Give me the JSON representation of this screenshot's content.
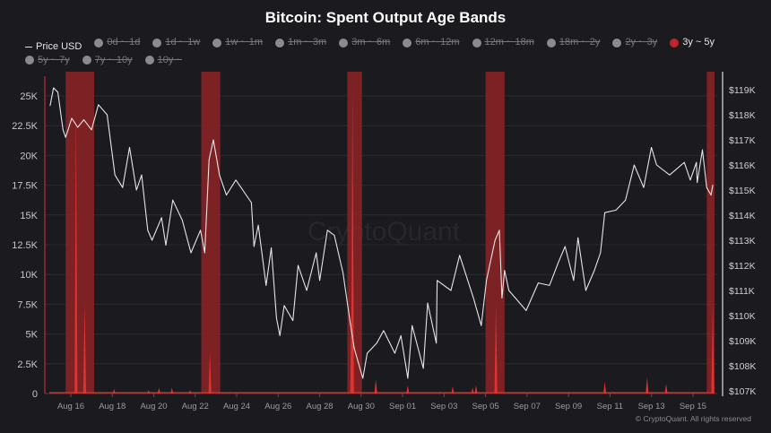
{
  "chart_data": {
    "type": "line",
    "title": "Bitcoin: Spent Output Age Bands",
    "legend": {
      "placement": "top",
      "items": [
        {
          "label": "Price USD",
          "active": true,
          "marker": "line"
        },
        {
          "label": "0d ~ 1d",
          "active": false
        },
        {
          "label": "1d ~ 1w",
          "active": false
        },
        {
          "label": "1w ~ 1m",
          "active": false
        },
        {
          "label": "1m ~ 3m",
          "active": false
        },
        {
          "label": "3m ~ 6m",
          "active": false
        },
        {
          "label": "6m ~ 12m",
          "active": false
        },
        {
          "label": "12m ~ 18m",
          "active": false
        },
        {
          "label": "18m ~ 2y",
          "active": false
        },
        {
          "label": "2y ~ 3y",
          "active": false
        },
        {
          "label": "3y ~ 5y",
          "active": true,
          "color": "#c0262b"
        },
        {
          "label": "5y ~ 7y",
          "active": false
        },
        {
          "label": "7y ~ 10y",
          "active": false
        },
        {
          "label": "10y ~",
          "active": false
        }
      ]
    },
    "x_ticks": [
      "Aug 16",
      "Aug 18",
      "Aug 20",
      "Aug 22",
      "Aug 24",
      "Aug 26",
      "Aug 28",
      "Aug 30",
      "Sep 01",
      "Sep 03",
      "Sep 05",
      "Sep 07",
      "Sep 09",
      "Sep 11",
      "Sep 13",
      "Sep 15"
    ],
    "y_left": {
      "ticks": [
        "0",
        "2.5K",
        "5K",
        "7.5K",
        "10K",
        "12.5K",
        "15K",
        "17.5K",
        "20K",
        "22.5K",
        "25K"
      ],
      "range": [
        0,
        26000
      ],
      "grid": true
    },
    "y_right": {
      "ticks": [
        "$107K",
        "$108K",
        "$109K",
        "$110K",
        "$111K",
        "$112K",
        "$113K",
        "$114K",
        "$115K",
        "$116K",
        "$117K",
        "$118K",
        "$119K"
      ],
      "range": [
        107000,
        119000
      ]
    },
    "series": [
      {
        "name": "Price USD",
        "axis": "right",
        "color": "#e6e6e6",
        "points": [
          [
            "Aug 15 00:00",
            118360
          ],
          [
            "Aug 15 04:00",
            119070
          ],
          [
            "Aug 15 09:00",
            118900
          ],
          [
            "Aug 15 15:00",
            117400
          ],
          [
            "Aug 15 18:00",
            117100
          ],
          [
            "Aug 16 01:00",
            117860
          ],
          [
            "Aug 16 08:00",
            117500
          ],
          [
            "Aug 16 15:00",
            117800
          ],
          [
            "Aug 17 00:00",
            117400
          ],
          [
            "Aug 17 08:00",
            118400
          ],
          [
            "Aug 17 18:00",
            118000
          ],
          [
            "Aug 18 03:00",
            115600
          ],
          [
            "Aug 18 12:00",
            115100
          ],
          [
            "Aug 18 20:00",
            116700
          ],
          [
            "Aug 19 04:00",
            115000
          ],
          [
            "Aug 19 10:00",
            115600
          ],
          [
            "Aug 19 17:00",
            113400
          ],
          [
            "Aug 19 22:00",
            113000
          ],
          [
            "Aug 20 09:00",
            113900
          ],
          [
            "Aug 20 14:00",
            112800
          ],
          [
            "Aug 20 22:00",
            114600
          ],
          [
            "Aug 21 09:00",
            113800
          ],
          [
            "Aug 21 19:00",
            112500
          ],
          [
            "Aug 22 06:00",
            113400
          ],
          [
            "Aug 22 11:00",
            112500
          ],
          [
            "Aug 22 16:00",
            116200
          ],
          [
            "Aug 22 21:00",
            117000
          ],
          [
            "Aug 23 04:00",
            115600
          ],
          [
            "Aug 23 12:00",
            114800
          ],
          [
            "Aug 23 23:00",
            115400
          ],
          [
            "Aug 24 17:00",
            114500
          ],
          [
            "Aug 24 20:00",
            112750
          ],
          [
            "Aug 25 01:00",
            113600
          ],
          [
            "Aug 25 10:00",
            111200
          ],
          [
            "Aug 25 16:00",
            112700
          ],
          [
            "Aug 25 22:00",
            109900
          ],
          [
            "Aug 26 02:00",
            109200
          ],
          [
            "Aug 26 07:00",
            110400
          ],
          [
            "Aug 26 17:00",
            109800
          ],
          [
            "Aug 26 23:00",
            112000
          ],
          [
            "Aug 27 09:00",
            111000
          ],
          [
            "Aug 27 20:00",
            112500
          ],
          [
            "Aug 28 00:00",
            111400
          ],
          [
            "Aug 28 09:00",
            113400
          ],
          [
            "Aug 28 17:00",
            113200
          ],
          [
            "Aug 29 03:00",
            111700
          ],
          [
            "Aug 29 11:00",
            109800
          ],
          [
            "Aug 29 16:00",
            108700
          ],
          [
            "Aug 30 02:00",
            107500
          ],
          [
            "Aug 30 07:00",
            108500
          ],
          [
            "Aug 30 18:00",
            108900
          ],
          [
            "Aug 31 02:00",
            109400
          ],
          [
            "Aug 31 15:00",
            108500
          ],
          [
            "Aug 31 22:00",
            109200
          ],
          [
            "Sep 01 06:00",
            107500
          ],
          [
            "Sep 01 11:00",
            109600
          ],
          [
            "Sep 02 00:00",
            107900
          ],
          [
            "Sep 02 05:00",
            110500
          ],
          [
            "Sep 02 15:00",
            108900
          ],
          [
            "Sep 02 16:00",
            111400
          ],
          [
            "Sep 03 08:00",
            111000
          ],
          [
            "Sep 03 18:00",
            112400
          ],
          [
            "Sep 04 10:00",
            110700
          ],
          [
            "Sep 04 19:00",
            109600
          ],
          [
            "Sep 05 01:00",
            111400
          ],
          [
            "Sep 05 11:00",
            113000
          ],
          [
            "Sep 05 16:00",
            113400
          ],
          [
            "Sep 05 19:00",
            110700
          ],
          [
            "Sep 05 22:00",
            111800
          ],
          [
            "Sep 06 03:00",
            111000
          ],
          [
            "Sep 06 23:00",
            110200
          ],
          [
            "Sep 07 13:00",
            111300
          ],
          [
            "Sep 08 02:00",
            111200
          ],
          [
            "Sep 08 12:00",
            112100
          ],
          [
            "Sep 08 20:00",
            112750
          ],
          [
            "Sep 09 06:00",
            111400
          ],
          [
            "Sep 09 11:00",
            113100
          ],
          [
            "Sep 09 20:00",
            111000
          ],
          [
            "Sep 10 06:00",
            111800
          ],
          [
            "Sep 10 13:00",
            112500
          ],
          [
            "Sep 10 18:00",
            114100
          ],
          [
            "Sep 11 07:00",
            114200
          ],
          [
            "Sep 11 18:00",
            114600
          ],
          [
            "Sep 12 04:00",
            116000
          ],
          [
            "Sep 12 15:00",
            115100
          ],
          [
            "Sep 13 00:00",
            116700
          ],
          [
            "Sep 13 06:00",
            116000
          ],
          [
            "Sep 13 21:00",
            115600
          ],
          [
            "Sep 14 14:00",
            116100
          ],
          [
            "Sep 14 21:00",
            115400
          ],
          [
            "Sep 15 04:00",
            116100
          ],
          [
            "Sep 15 05:00",
            115300
          ],
          [
            "Sep 15 11:00",
            116600
          ],
          [
            "Sep 15 16:00",
            115100
          ],
          [
            "Sep 15 21:00",
            114800
          ],
          [
            "Sep 15 23:00",
            115200
          ]
        ]
      },
      {
        "name": "3y ~ 5y",
        "axis": "left",
        "color": "#e0322f",
        "points": [
          [
            "Aug 16 06:00",
            23900
          ],
          [
            "Aug 16 16:00",
            7600
          ],
          [
            "Aug 18 02:00",
            400
          ],
          [
            "Aug 19 18:00",
            300
          ],
          [
            "Aug 20 06:00",
            500
          ],
          [
            "Aug 20 21:00",
            500
          ],
          [
            "Aug 21 18:00",
            300
          ],
          [
            "Aug 22 17:00",
            3500
          ],
          [
            "Aug 29 14:00",
            25700
          ],
          [
            "Aug 29 13:00",
            8400
          ],
          [
            "Aug 30 17:00",
            1200
          ],
          [
            "Sep 01 06:00",
            700
          ],
          [
            "Sep 03 10:00",
            600
          ],
          [
            "Sep 04 09:00",
            500
          ],
          [
            "Sep 04 13:00",
            700
          ],
          [
            "Sep 05 12:00",
            7600
          ],
          [
            "Sep 10 18:00",
            1000
          ],
          [
            "Sep 12 19:00",
            1400
          ],
          [
            "Sep 13 17:00",
            800
          ],
          [
            "Sep 15 23:00",
            7600
          ]
        ],
        "off_scale_ranges": [
          [
            "Aug 15 18:00",
            "Aug 17 03:00"
          ],
          [
            "Aug 22 07:00",
            "Aug 23 05:00"
          ],
          [
            "Aug 29 08:00",
            "Aug 30 01:00"
          ],
          [
            "Sep 05 00:00",
            "Sep 05 22:00"
          ],
          [
            "Sep 15 16:00",
            "Sep 16 01:00"
          ]
        ]
      }
    ],
    "watermark": "CryptoQuant"
  },
  "footer": "© CryptoQuant. All rights reserved"
}
